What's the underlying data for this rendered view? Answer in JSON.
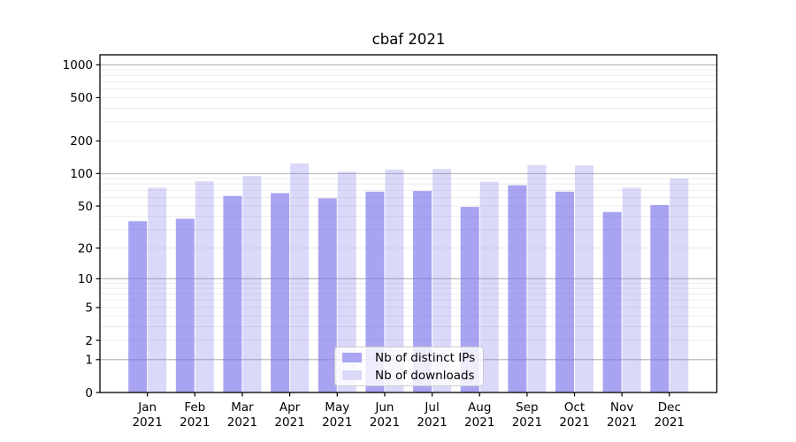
{
  "chart_data": {
    "type": "bar",
    "title": "cbaf 2021",
    "categories": [
      "Jan",
      "Feb",
      "Mar",
      "Apr",
      "May",
      "Jun",
      "Jul",
      "Aug",
      "Sep",
      "Oct",
      "Nov",
      "Dec"
    ],
    "x_year": "2021",
    "series": [
      {
        "name": "Nb of distinct IPs",
        "color": "#a9a5f1",
        "fill": "rgba(123,117,234,0.66)",
        "values": [
          36,
          38,
          62,
          66,
          59,
          68,
          69,
          49,
          78,
          68,
          44,
          51
        ]
      },
      {
        "name": "Nb of downloads",
        "color": "#dbdaf8",
        "fill": "rgba(123,117,234,0.28)",
        "values": [
          74,
          85,
          95,
          124,
          104,
          109,
          110,
          84,
          120,
          119,
          74,
          90
        ]
      }
    ],
    "y_ticks": [
      0,
      1,
      2,
      5,
      10,
      20,
      50,
      100,
      200,
      500,
      1000
    ],
    "y_scale": "log1p",
    "ylim": [
      0,
      1234
    ],
    "xlabel": "",
    "ylabel": "",
    "grid": "both",
    "grid_major_color": "#b0b0b0",
    "grid_minor_color": "#e9e9e9",
    "legend_position": "lower-center"
  }
}
